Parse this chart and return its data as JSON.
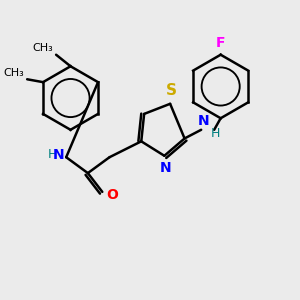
{
  "bg_color": "#ebebeb",
  "bond_color": "#000000",
  "N_color": "#0000ff",
  "O_color": "#ff0000",
  "S_color": "#ccaa00",
  "F_color": "#ff00ff",
  "H_color": "#008080",
  "line_width": 1.8,
  "font_size": 10,
  "figsize": [
    3.0,
    3.0
  ],
  "dpi": 100,
  "xlim": [
    0,
    10
  ],
  "ylim": [
    0,
    10
  ]
}
